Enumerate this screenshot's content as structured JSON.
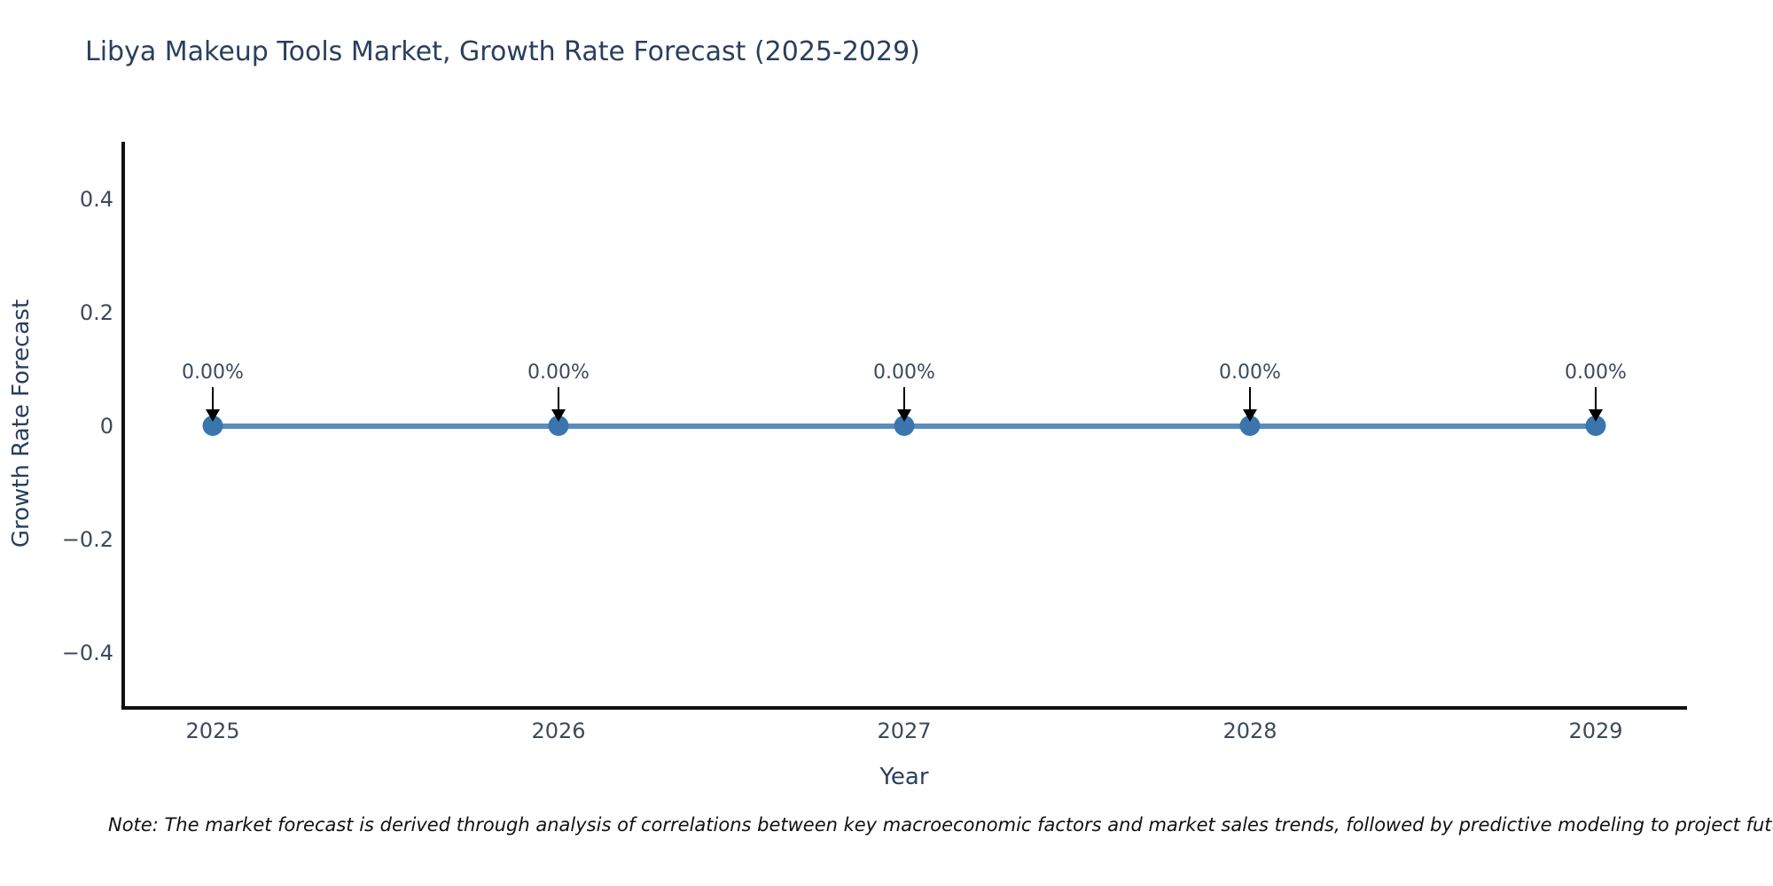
{
  "title": "Libya Makeup Tools Market, Growth Rate Forecast (2025-2029)",
  "note": "Note: The market forecast is derived through analysis of correlations between key macroeconomic factors and market sales trends, followed by predictive modeling to project future sales.",
  "colors": {
    "line": "#5b8cbe",
    "marker": "#3a76ad",
    "axis": "#111111",
    "text": "#2a3f5f",
    "annotation_arrow": "#000000"
  },
  "chart_data": {
    "type": "line",
    "title": "Libya Makeup Tools Market, Growth Rate Forecast (2025-2029)",
    "xlabel": "Year",
    "ylabel": "Growth Rate Forecast",
    "x": [
      2025,
      2026,
      2027,
      2028,
      2029
    ],
    "values": [
      0,
      0,
      0,
      0,
      0
    ],
    "point_labels": [
      "0.00%",
      "0.00%",
      "0.00%",
      "0.00%",
      "0.00%"
    ],
    "ylim": [
      -0.5,
      0.5
    ],
    "grid": false,
    "legend": "none",
    "xticks": [
      "2025",
      "2026",
      "2027",
      "2028",
      "2029"
    ],
    "yticks": [
      "0.4",
      "0.2",
      "0",
      "−0.2",
      "−0.4"
    ]
  }
}
